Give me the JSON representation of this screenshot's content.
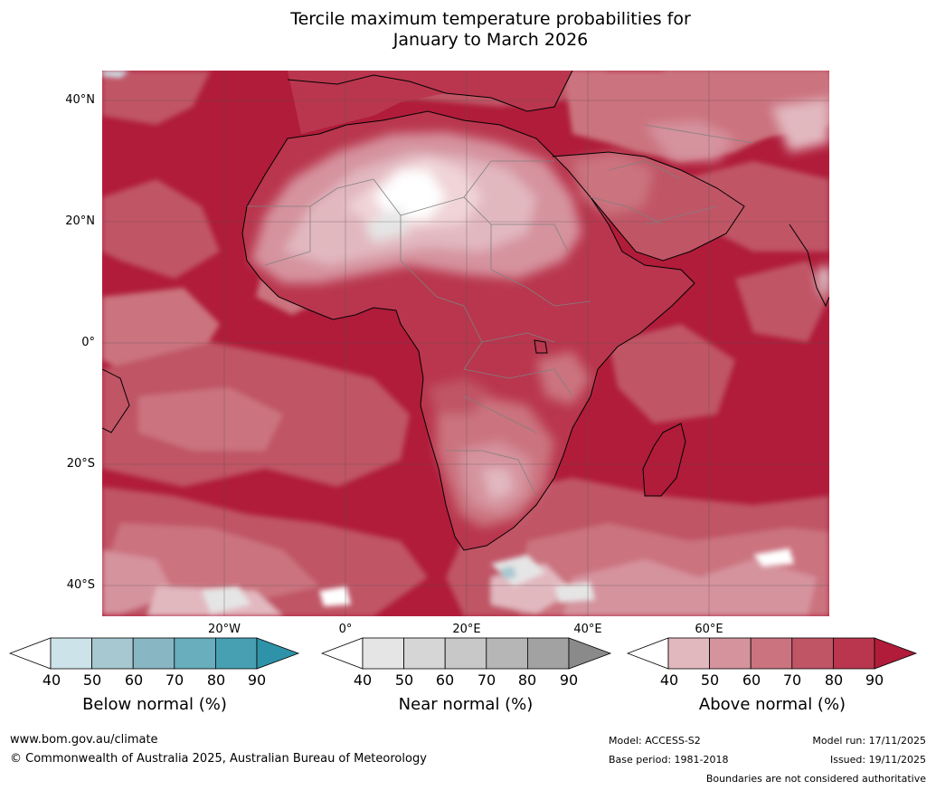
{
  "title": {
    "line1": "Tercile maximum temperature probabilities for",
    "line2": "January to March 2026"
  },
  "map": {
    "lat_labels": [
      "40°N",
      "20°N",
      "0°",
      "20°S",
      "40°S"
    ],
    "lon_labels": [
      "20°W",
      "0°",
      "20°E",
      "40°E",
      "60°E"
    ],
    "regions": [
      "Sahara (near normal / low probability)",
      "Southern Africa",
      "Arabian Peninsula",
      "Madagascar"
    ]
  },
  "colorbars": {
    "below": {
      "label": "Below normal (%)",
      "ticks": [
        "40",
        "50",
        "60",
        "70",
        "80",
        "90"
      ],
      "colors": [
        "#cde3ea",
        "#a7c8d0",
        "#88b6c2",
        "#68aebd",
        "#46a0b2",
        "#2e93a8"
      ]
    },
    "near": {
      "label": "Near normal (%)",
      "ticks": [
        "40",
        "50",
        "60",
        "70",
        "80",
        "90"
      ],
      "colors": [
        "#e5e5e5",
        "#d6d6d6",
        "#c8c8c8",
        "#b6b6b6",
        "#a2a2a2",
        "#8a8a8a"
      ]
    },
    "above": {
      "label": "Above normal (%)",
      "ticks": [
        "40",
        "50",
        "60",
        "70",
        "80",
        "90"
      ],
      "colors": [
        "#e2b8bf",
        "#d5939e",
        "#cb737f",
        "#c05566",
        "#b9364e",
        "#b01c3a"
      ]
    }
  },
  "footer": {
    "website": "www.bom.gov.au/climate",
    "copyright": "© Commonwealth of Australia 2025, Australian Bureau of Meteorology",
    "model": "Model: ACCESS-S2",
    "base_period": "Base period: 1981-2018",
    "model_run": "Model run: 17/11/2025",
    "issued": "Issued: 19/11/2025",
    "disclaimer": "Boundaries are not considered authoritative"
  }
}
